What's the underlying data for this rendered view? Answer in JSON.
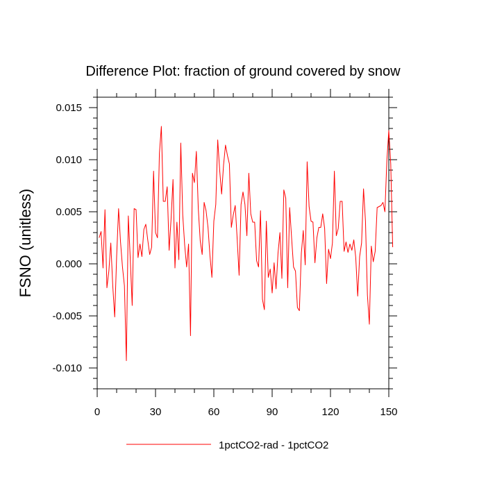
{
  "chart_data": {
    "type": "line",
    "title": "Difference Plot: fraction of ground covered by snow",
    "xlabel": "",
    "ylabel": "FSNO  (unitless)",
    "xlim": [
      0,
      150
    ],
    "ylim": [
      -0.012,
      0.016
    ],
    "x_ticks": [
      0,
      30,
      60,
      90,
      120,
      150
    ],
    "x_tick_labels": [
      "0",
      "30",
      "60",
      "90",
      "120",
      "150"
    ],
    "y_ticks": [
      0.015,
      0.01,
      0.005,
      0.0,
      -0.005,
      -0.01
    ],
    "y_tick_labels": [
      "0.015",
      "0.010",
      "0.005",
      "0.000",
      "-0.005",
      "-0.010"
    ],
    "grid": false,
    "legend_placement": "bottom-center",
    "series": [
      {
        "name": "1pctCO2-rad - 1pctCO2",
        "color": "#ff0000",
        "x_start": 1,
        "x_step": 1,
        "values": [
          0.0025,
          0.0031,
          -0.0004,
          0.0052,
          -0.0023,
          -0.0007,
          0.002,
          -0.0021,
          -0.0051,
          0.0007,
          0.0053,
          0.0021,
          -0.0003,
          -0.0021,
          -0.0093,
          0.0046,
          0.0005,
          -0.004,
          0.0053,
          0.0052,
          0.0006,
          0.0019,
          0.0007,
          0.0033,
          0.0038,
          0.0023,
          0.0009,
          0.0016,
          0.0089,
          0.003,
          0.0025,
          0.0106,
          0.0132,
          0.006,
          0.006,
          0.0074,
          0.0013,
          0.0043,
          0.0081,
          -0.0004,
          0.004,
          0.0004,
          0.0116,
          0.0047,
          0.0018,
          -0.0003,
          0.0019,
          -0.0069,
          0.0087,
          0.0078,
          0.0108,
          0.0053,
          0.0022,
          0.0009,
          0.0059,
          0.0051,
          0.0035,
          0.0008,
          -0.0013,
          0.0041,
          0.0057,
          0.0119,
          0.009,
          0.0067,
          0.0095,
          0.0114,
          0.0104,
          0.0096,
          0.0035,
          0.0047,
          0.0056,
          0.0024,
          -0.0011,
          0.0057,
          0.0069,
          0.0057,
          0.0027,
          0.0087,
          0.0048,
          0.004,
          0.004,
          0.0003,
          -0.0003,
          0.0051,
          -0.0034,
          -0.0044,
          0.0041,
          -0.0013,
          -0.0005,
          -0.0028,
          0.0001,
          -0.0024,
          0.001,
          0.003,
          -0.0014,
          0.0071,
          0.0063,
          -0.0023,
          0.0054,
          0.0025,
          -0.0003,
          -0.0007,
          -0.0042,
          -0.0045,
          0.001,
          0.0032,
          -0.0001,
          0.0098,
          0.0055,
          0.0041,
          0.004,
          0.0001,
          0.0025,
          0.0035,
          0.0035,
          0.0048,
          0.0034,
          -0.0019,
          0.0014,
          0.0005,
          0.002,
          0.0089,
          0.0027,
          0.0034,
          0.006,
          0.006,
          0.0012,
          0.0021,
          0.0011,
          0.0019,
          0.0013,
          0.0023,
          0.0006,
          -0.0031,
          0.0007,
          0.002,
          0.0072,
          0.0041,
          -0.003,
          -0.0058,
          0.0017,
          0.0002,
          0.0012,
          0.0054,
          0.0055,
          0.0056,
          0.0059,
          0.005,
          0.0099,
          0.0128,
          0.0096,
          0.0016
        ]
      }
    ]
  }
}
